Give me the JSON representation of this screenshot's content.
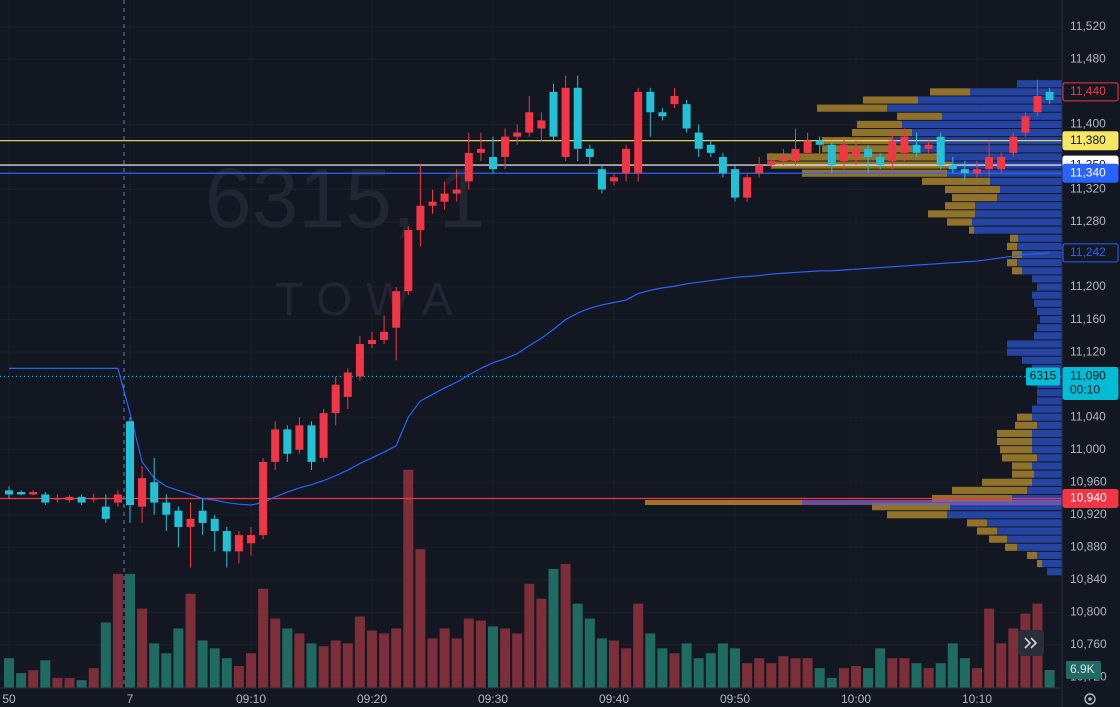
{
  "chart_data": {
    "type": "candlestick",
    "watermark": {
      "symbol": "6315, 1",
      "name": "TOWA"
    },
    "categories": [
      "50",
      null,
      null,
      null,
      null,
      null,
      null,
      null,
      null,
      null,
      "7",
      null,
      null,
      null,
      null,
      null,
      null,
      null,
      null,
      null,
      "09:10",
      null,
      null,
      null,
      null,
      null,
      null,
      null,
      null,
      null,
      "09:20",
      null,
      null,
      null,
      null,
      null,
      null,
      null,
      null,
      null,
      "09:30",
      null,
      null,
      null,
      null,
      null,
      null,
      null,
      null,
      null,
      "09:40",
      null,
      null,
      null,
      null,
      null,
      null,
      null,
      null,
      null,
      "09:50",
      null,
      null,
      null,
      null,
      null,
      null,
      null,
      null,
      null,
      "10:00",
      null,
      null,
      null,
      null,
      null,
      null,
      null,
      null,
      null,
      "10:10",
      null,
      null,
      null,
      null,
      null,
      null
    ],
    "open": [
      10950,
      10948,
      10945,
      10945,
      10940,
      10938,
      10942,
      10940,
      10930,
      10935,
      11035,
      10930,
      10960,
      10935,
      10925,
      10905,
      10925,
      10915,
      10900,
      10875,
      10885,
      10895,
      10985,
      11025,
      11000,
      11030,
      10990,
      11045,
      11065,
      11090,
      11130,
      11135,
      11150,
      11195,
      11270,
      11300,
      11305,
      11315,
      11330,
      11365,
      11360,
      11360,
      11385,
      11390,
      11395,
      11440,
      11360,
      11445,
      11370,
      11345,
      11330,
      11340,
      11340,
      11440,
      11415,
      11425,
      11425,
      11390,
      11375,
      11360,
      11345,
      11310,
      11340,
      11350,
      11355,
      11355,
      11365,
      11380,
      11375,
      11355,
      11360,
      11370,
      11360,
      11355,
      11365,
      11375,
      11370,
      11385,
      11350,
      11345,
      11340,
      11345,
      11345,
      11365,
      11390,
      11415,
      11440
    ],
    "high": [
      10955,
      10950,
      10950,
      10948,
      10945,
      10944,
      10945,
      10946,
      10945,
      10950,
      11040,
      10980,
      10990,
      10945,
      10930,
      10935,
      10940,
      10920,
      10905,
      10900,
      10905,
      10990,
      11035,
      11030,
      11040,
      11035,
      11050,
      11090,
      11100,
      11140,
      11145,
      11165,
      11200,
      11275,
      11350,
      11320,
      11330,
      11345,
      11390,
      11390,
      11385,
      11395,
      11400,
      11435,
      11415,
      11450,
      11460,
      11460,
      11375,
      11350,
      11340,
      11375,
      11445,
      11445,
      11420,
      11445,
      11430,
      11400,
      11380,
      11365,
      11350,
      11340,
      11360,
      11365,
      11370,
      11395,
      11390,
      11385,
      11380,
      11385,
      11380,
      11375,
      11365,
      11390,
      11395,
      11390,
      11380,
      11390,
      11360,
      11355,
      11355,
      11380,
      11365,
      11390,
      11415,
      11455,
      11445
    ],
    "low": [
      10940,
      10944,
      10944,
      10932,
      10935,
      10935,
      10932,
      10935,
      10910,
      10930,
      10910,
      10910,
      10920,
      10900,
      10880,
      10855,
      10895,
      10875,
      10855,
      10860,
      10870,
      10890,
      10975,
      10985,
      10995,
      10975,
      10985,
      11030,
      11050,
      11085,
      11125,
      11130,
      11110,
      11190,
      11250,
      11290,
      11295,
      11305,
      11320,
      11355,
      11340,
      11345,
      11375,
      11385,
      11380,
      11380,
      11355,
      11355,
      11350,
      11315,
      11325,
      11330,
      11330,
      11385,
      11405,
      11420,
      11390,
      11360,
      11360,
      11335,
      11305,
      11305,
      11335,
      11345,
      11350,
      11350,
      11360,
      11365,
      11340,
      11345,
      11350,
      11340,
      11345,
      11345,
      11355,
      11360,
      11365,
      11345,
      11340,
      11330,
      11335,
      11335,
      11340,
      11360,
      11385,
      11410,
      11425
    ],
    "close": [
      10945,
      10945,
      10948,
      10935,
      10940,
      10942,
      10935,
      10940,
      10915,
      10945,
      10932,
      10965,
      10935,
      10920,
      10905,
      10915,
      10910,
      10900,
      10875,
      10895,
      10895,
      10985,
      11025,
      10995,
      11030,
      10985,
      11045,
      11080,
      11095,
      11130,
      11135,
      11145,
      11195,
      11270,
      11300,
      11305,
      11315,
      11320,
      11365,
      11370,
      11345,
      11385,
      11390,
      11415,
      11405,
      11385,
      11445,
      11370,
      11360,
      11320,
      11335,
      11370,
      11440,
      11415,
      11410,
      11435,
      11395,
      11370,
      11365,
      11340,
      11310,
      11335,
      11350,
      11355,
      11360,
      11370,
      11380,
      11375,
      11350,
      11375,
      11370,
      11360,
      11350,
      11380,
      11385,
      11365,
      11375,
      11350,
      11345,
      11340,
      11345,
      11360,
      11360,
      11385,
      11410,
      11435,
      11430
    ],
    "up_color": "#f23645",
    "down_color": "#22c1d6",
    "volume": [
      11400,
      5700,
      6800,
      10600,
      3800,
      3800,
      3000,
      7600,
      25100,
      43700,
      43700,
      30400,
      17100,
      13300,
      22800,
      36100,
      18200,
      15200,
      11400,
      8400,
      13300,
      38000,
      26600,
      22800,
      20900,
      17100,
      16000,
      18200,
      17100,
      27400,
      22000,
      20900,
      22800,
      83600,
      53200,
      19000,
      22800,
      19000,
      26600,
      25800,
      23600,
      22800,
      20900,
      39900,
      34200,
      45600,
      47500,
      32300,
      26600,
      19000,
      18200,
      15200,
      32300,
      20900,
      15200,
      13300,
      17100,
      11400,
      13300,
      17100,
      15200,
      9500,
      11400,
      9500,
      12200,
      11400,
      11400,
      7600,
      3800,
      7600,
      8400,
      7600,
      15200,
      11400,
      11400,
      9500,
      7600,
      9500,
      17100,
      11400,
      7600,
      30400,
      17100,
      22800,
      28500,
      32300,
      6900
    ],
    "volume_label": "6.9K",
    "vlim": [
      0,
      90000
    ],
    "volume_up_color": "#7c2f38",
    "volume_down_color": "#1f6b62",
    "vwap": {
      "color": "#2962ff",
      "values": [
        11100,
        11100,
        11100,
        11100,
        11100,
        11100,
        11100,
        11100,
        11100,
        11100,
        11045,
        10985,
        10965,
        10955,
        10950,
        10945,
        10940,
        10938,
        10935,
        10933,
        10932,
        10935,
        10942,
        10948,
        10953,
        10957,
        10962,
        10968,
        10975,
        10983,
        10990,
        10997,
        11005,
        11040,
        11060,
        11068,
        11076,
        11083,
        11092,
        11100,
        11107,
        11112,
        11118,
        11128,
        11137,
        11148,
        11160,
        11168,
        11174,
        11178,
        11181,
        11184,
        11192,
        11196,
        11199,
        11201,
        11204,
        11206,
        11208,
        11210,
        11212,
        11213,
        11214,
        11216,
        11217,
        11218,
        11219,
        11220,
        11220,
        11221,
        11222,
        11223,
        11224,
        11225,
        11226,
        11227,
        11228,
        11229,
        11230,
        11231,
        11232,
        11234,
        11236,
        11238,
        11240,
        11241,
        11242
      ]
    },
    "ylim": [
      10707,
      11553
    ],
    "yticks": [
      {
        "value": 11520,
        "label": "11,520"
      },
      {
        "value": 11480,
        "label": "11,480"
      },
      {
        "value": 11400,
        "label": "11,400"
      },
      {
        "value": 11320,
        "label": "11,320"
      },
      {
        "value": 11280,
        "label": "11,280"
      },
      {
        "value": 11200,
        "label": "11,200"
      },
      {
        "value": 11160,
        "label": "11,160"
      },
      {
        "value": 11120,
        "label": "11,120"
      },
      {
        "value": 11040,
        "label": "11,040"
      },
      {
        "value": 11000,
        "label": "11,000"
      },
      {
        "value": 10960,
        "label": "10,960"
      },
      {
        "value": 10920,
        "label": "10,920"
      },
      {
        "value": 10880,
        "label": "10,880"
      },
      {
        "value": 10840,
        "label": "10,840"
      },
      {
        "value": 10800,
        "label": "10,800"
      },
      {
        "value": 10760,
        "label": "10,760"
      },
      {
        "value": 10720,
        "label": "10,720"
      }
    ],
    "price_labels": [
      {
        "value": 11440,
        "label": "11,440",
        "bg": "#131722",
        "fg": "#f23645",
        "border": "#f23645",
        "line": "none"
      },
      {
        "value": 11380,
        "label": "11,380",
        "bg": "#f5e663",
        "fg": "#131722",
        "border": "#f5e663",
        "line": "solid"
      },
      {
        "value": 11350,
        "label": "11,350",
        "bg": "#ffffff",
        "fg": "#131722",
        "border": "#ffffff",
        "line": "solid"
      },
      {
        "value": 11340,
        "label": "11,340",
        "bg": "#2962ff",
        "fg": "#ffffff",
        "border": "#2962ff",
        "line": "solid"
      },
      {
        "value": 11242,
        "label": "11,242",
        "bg": "#131722",
        "fg": "#2962ff",
        "border": "#2962ff",
        "line": "none"
      },
      {
        "value": 11090,
        "label": "11,090",
        "symbol": "6315",
        "countdown": "00:10",
        "bg": "#00bcd4",
        "fg": "#131722",
        "border": "#00bcd4",
        "line": "dotted"
      },
      {
        "value": 10940,
        "label": "10,940",
        "bg": "#f23645",
        "fg": "#ffffff",
        "border": "#f23645",
        "line": "solid"
      }
    ],
    "profile": {
      "up_color": "#2a4fc1",
      "down_color": "#b08a2e",
      "xlim": [
        0,
        30000
      ],
      "levels": [
        11450,
        11440,
        11430,
        11420,
        11410,
        11400,
        11390,
        11380,
        11370,
        11360,
        11350,
        11340,
        11330,
        11320,
        11310,
        11300,
        11290,
        11280,
        11270,
        11260,
        11250,
        11240,
        11230,
        11220,
        11210,
        11200,
        11190,
        11180,
        11170,
        11160,
        11150,
        11140,
        11130,
        11120,
        11110,
        11100,
        11090,
        11080,
        11070,
        11060,
        11050,
        11040,
        11030,
        11020,
        11010,
        11000,
        10990,
        10980,
        10970,
        10960,
        10950,
        10940,
        10930,
        10920,
        10910,
        10900,
        10890,
        10880,
        10870,
        10860,
        10850
      ],
      "down": [
        0,
        4000,
        5500,
        7000,
        4500,
        4500,
        6000,
        7000,
        9000,
        17500,
        18000,
        14500,
        6800,
        5500,
        4500,
        3000,
        4700,
        2500,
        500,
        800,
        1000,
        1000,
        1000,
        1000,
        0,
        0,
        0,
        0,
        0,
        0,
        0,
        0,
        0,
        0,
        0,
        0,
        0,
        0,
        0,
        0,
        0,
        1500,
        2200,
        3500,
        3500,
        3200,
        3500,
        2000,
        2200,
        5000,
        7500,
        8000,
        7800,
        6000,
        2000,
        2000,
        1800,
        1200,
        1000,
        500,
        0
      ],
      "up": [
        4500,
        9200,
        14400,
        17500,
        12000,
        16000,
        15000,
        17000,
        15000,
        12000,
        11000,
        11500,
        7200,
        6200,
        6500,
        8700,
        8700,
        9000,
        8800,
        4400,
        4500,
        4000,
        4500,
        4000,
        3000,
        2500,
        3000,
        2800,
        2500,
        2200,
        2500,
        2800,
        5500,
        5500,
        4000,
        3000,
        3500,
        2500,
        2500,
        2500,
        3000,
        3000,
        2500,
        3000,
        3000,
        3000,
        2500,
        3000,
        2800,
        3000,
        3500,
        5000,
        11200,
        11500,
        7500,
        6500,
        5500,
        4500,
        2500,
        2000,
        1500
      ]
    }
  }
}
